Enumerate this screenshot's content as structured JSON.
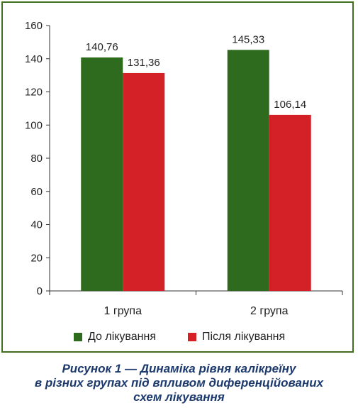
{
  "chart_data": {
    "type": "bar",
    "categories": [
      "1 група",
      "2 група"
    ],
    "series": [
      {
        "name": "До лікування",
        "values": [
          140.76,
          145.33
        ],
        "labels": [
          "140,76",
          "145,33"
        ],
        "color": "#2e6b1e"
      },
      {
        "name": "Після лікування",
        "values": [
          131.36,
          106.14
        ],
        "labels": [
          "131,36",
          "106,14"
        ],
        "color": "#d42127"
      }
    ],
    "yticks": [
      "0",
      "20",
      "40",
      "60",
      "80",
      "100",
      "120",
      "140",
      "160"
    ],
    "ylim": [
      0,
      160
    ],
    "grid": false,
    "legend_position": "bottom"
  },
  "caption": {
    "line1": "Рисунок 1 — Динаміка рівня калікреїну",
    "line2": "в різних групах під впливом диференційованих",
    "line3": "схем лікування"
  },
  "colors": {
    "border": "#3f6f1f",
    "caption": "#1d3a6e"
  }
}
